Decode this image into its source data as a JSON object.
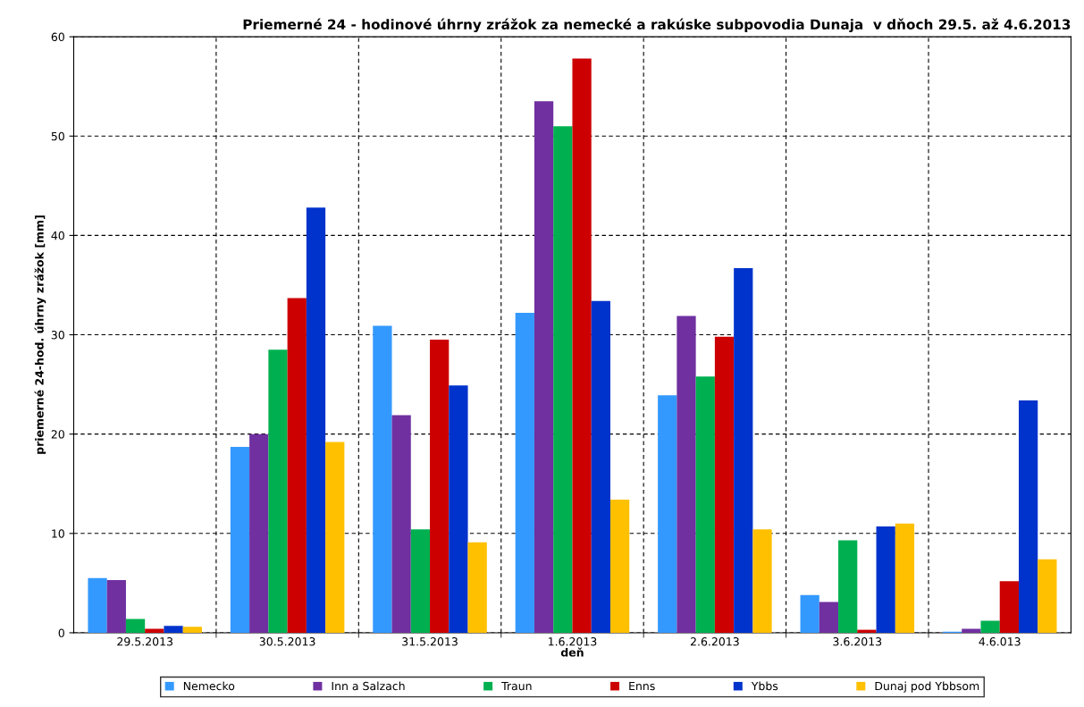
{
  "chart_data": {
    "type": "bar",
    "title": "Priemerné 24 - hodinové úhrny zrážok za nemecké a rakúske subpovodia Dunaja  v dňoch 29.5. až 4.6.2013",
    "xlabel": "deň",
    "ylabel": "priemerné 24-hod. úhrny zrážok [mm]",
    "categories": [
      "29.5.2013",
      "30.5.2013",
      "31.5.2013",
      "1.6.2013",
      "2.6.2013",
      "3.6.2013",
      "4.6.013"
    ],
    "ylim": [
      0,
      60
    ],
    "yticks": [
      0,
      10,
      20,
      30,
      40,
      50,
      60
    ],
    "grid": true,
    "legend": "bottom",
    "series": [
      {
        "name": "Nemecko",
        "color": "#3399ff",
        "values": [
          5.5,
          18.7,
          30.9,
          32.2,
          23.9,
          3.8,
          0.1
        ]
      },
      {
        "name": "Inn a Salzach",
        "color": "#7030a0",
        "values": [
          5.3,
          20.0,
          21.9,
          53.5,
          31.9,
          3.1,
          0.4
        ]
      },
      {
        "name": "Traun",
        "color": "#00b050",
        "values": [
          1.4,
          28.5,
          10.4,
          51.0,
          25.8,
          9.3,
          1.2
        ]
      },
      {
        "name": "Enns",
        "color": "#cc0000",
        "values": [
          0.4,
          33.7,
          29.5,
          57.8,
          29.8,
          0.3,
          5.2
        ]
      },
      {
        "name": "Ybbs",
        "color": "#0033cc",
        "values": [
          0.7,
          42.8,
          24.9,
          33.4,
          36.7,
          10.7,
          23.4
        ]
      },
      {
        "name": "Dunaj pod Ybbsom",
        "color": "#ffc000",
        "values": [
          0.6,
          19.2,
          9.1,
          13.4,
          10.4,
          11.0,
          7.4
        ]
      }
    ]
  }
}
